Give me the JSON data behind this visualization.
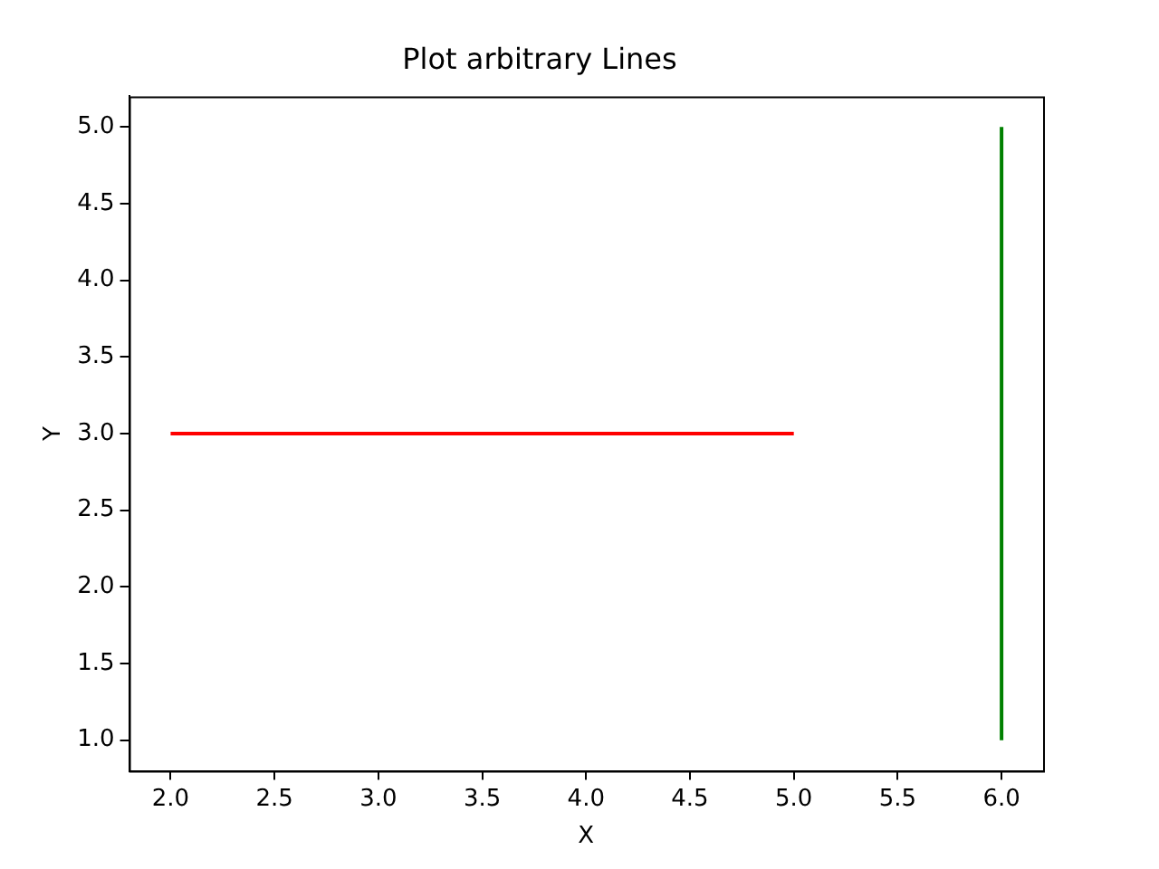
{
  "chart_data": {
    "type": "line",
    "title": "Plot arbitrary Lines",
    "xlabel": "X",
    "ylabel": "Y",
    "xlim": [
      1.8,
      6.2
    ],
    "ylim": [
      0.8,
      5.2
    ],
    "xticks": [
      {
        "value": 2,
        "label": "2.0"
      },
      {
        "value": 2.5,
        "label": "2.5"
      },
      {
        "value": 3,
        "label": "3.0"
      },
      {
        "value": 3.5,
        "label": "3.5"
      },
      {
        "value": 4,
        "label": "4.0"
      },
      {
        "value": 4.5,
        "label": "4.5"
      },
      {
        "value": 5,
        "label": "5.0"
      },
      {
        "value": 5.5,
        "label": "5.5"
      },
      {
        "value": 6,
        "label": "6.0"
      }
    ],
    "yticks": [
      {
        "value": 1,
        "label": "1.0"
      },
      {
        "value": 1.5,
        "label": "1.5"
      },
      {
        "value": 2,
        "label": "2.0"
      },
      {
        "value": 2.5,
        "label": "2.5"
      },
      {
        "value": 3,
        "label": "3.0"
      },
      {
        "value": 3.5,
        "label": "3.5"
      },
      {
        "value": 4,
        "label": "4.0"
      },
      {
        "value": 4.5,
        "label": "4.5"
      },
      {
        "value": 5,
        "label": "5.0"
      }
    ],
    "grid": false,
    "legend": false,
    "series": [
      {
        "color": "#ff0000",
        "x": [
          2,
          5
        ],
        "values": [
          3,
          3
        ]
      },
      {
        "color": "#008000",
        "x": [
          6,
          6
        ],
        "values": [
          1,
          5
        ]
      }
    ]
  }
}
